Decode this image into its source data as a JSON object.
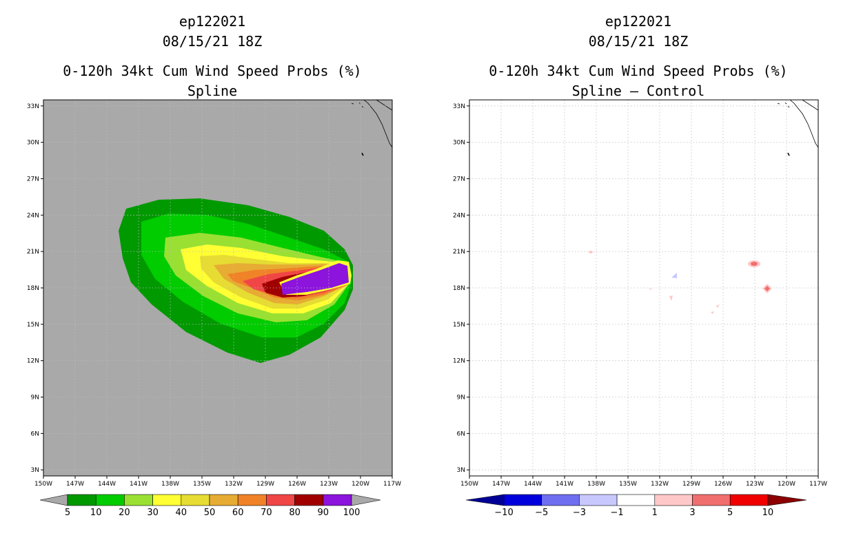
{
  "left_panel": {
    "storm_id": "ep122021",
    "date": "08/15/21 18Z",
    "product": "0-120h 34kt Cum Wind Speed Probs (%)",
    "subtitle": "Spline",
    "colorbar_labels": [
      "5",
      "10",
      "20",
      "30",
      "40",
      "50",
      "60",
      "70",
      "80",
      "90",
      "100"
    ],
    "colorbar_colors": [
      "#009900",
      "#00cc00",
      "#99e033",
      "#ffff33",
      "#e6dc33",
      "#e6ac33",
      "#f08228",
      "#f04646",
      "#a00000",
      "#8c14dc"
    ]
  },
  "right_panel": {
    "storm_id": "ep122021",
    "date": "08/15/21 18Z",
    "product": "0-120h 34kt Cum Wind Speed Probs (%)",
    "subtitle": "Spline – Control",
    "colorbar_labels": [
      "−10",
      "−5",
      "−3",
      "−1",
      "1",
      "3",
      "5",
      "10"
    ],
    "colorbar_colors": [
      "#0000dc",
      "#6e6ef0",
      "#c8c8ff",
      "#ffffff",
      "#ffc8c8",
      "#f06e6e",
      "#f00000"
    ]
  },
  "axes": {
    "lat_labels": [
      "33N",
      "30N",
      "27N",
      "24N",
      "21N",
      "18N",
      "15N",
      "12N",
      "9N",
      "6N",
      "3N"
    ],
    "lon_labels": [
      "150W",
      "147W",
      "144W",
      "141W",
      "138W",
      "135W",
      "132W",
      "129W",
      "126W",
      "123W",
      "120W",
      "117W"
    ],
    "lat_values": [
      33,
      30,
      27,
      24,
      21,
      18,
      15,
      12,
      9,
      6,
      3
    ],
    "lon_values": [
      -150,
      -147,
      -144,
      -141,
      -138,
      -135,
      -132,
      -129,
      -126,
      -123,
      -120,
      -117
    ]
  }
}
